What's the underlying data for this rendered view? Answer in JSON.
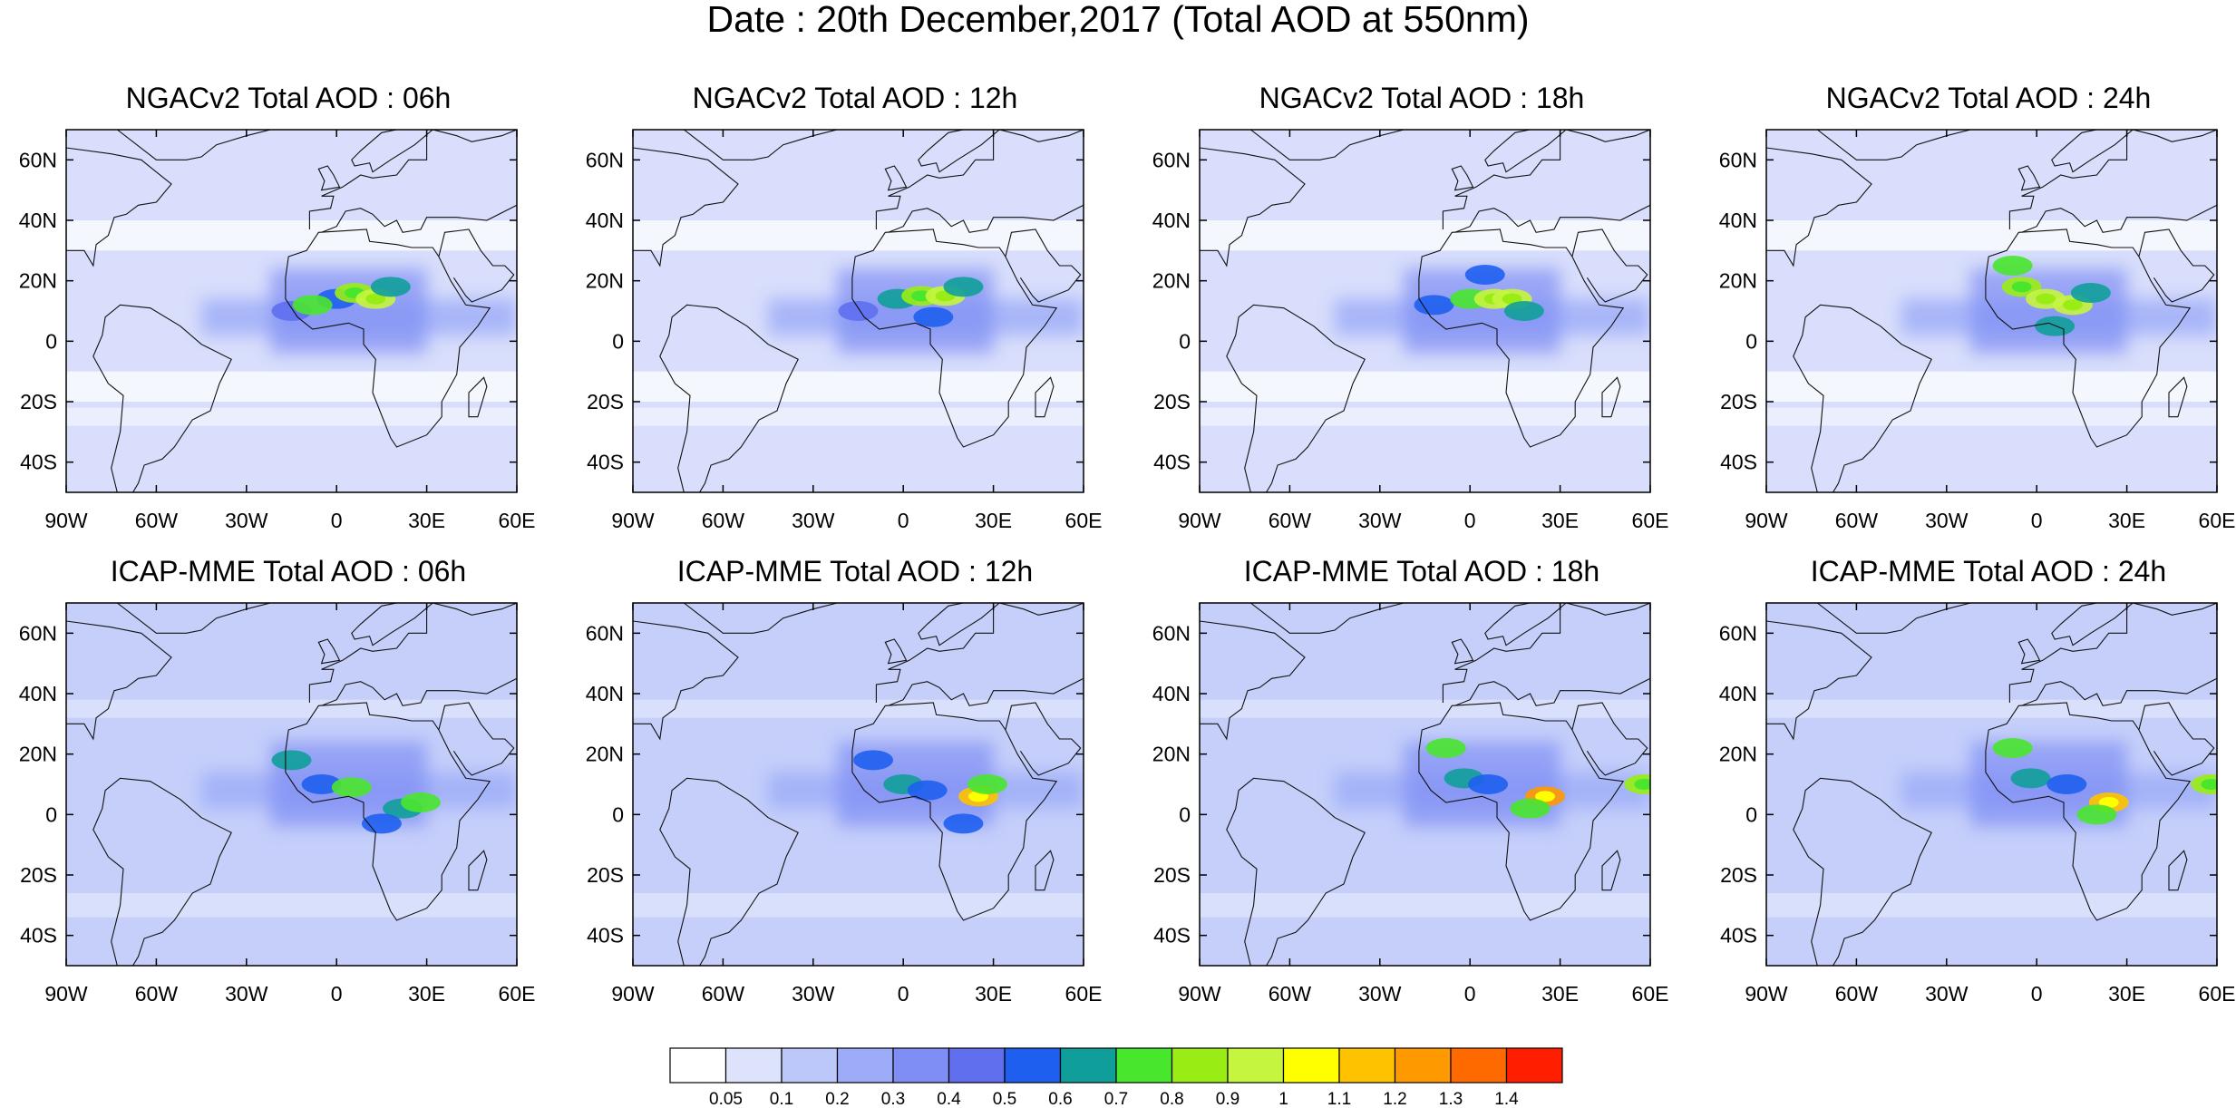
{
  "title": "Date : 20th December,2017 (Total AOD at 550nm)",
  "panels": [
    {
      "title": "NGACv2 Total AOD : 06h",
      "row": 0,
      "col": 0,
      "hotspots": [
        {
          "lon": -15,
          "lat": 10,
          "value": 0.4
        },
        {
          "lon": 0,
          "lat": 14,
          "value": 0.5
        },
        {
          "lon": 6,
          "lat": 16,
          "value": 0.8
        },
        {
          "lon": 13,
          "lat": 14,
          "value": 0.9
        },
        {
          "lon": -8,
          "lat": 12,
          "value": 0.7
        },
        {
          "lon": 18,
          "lat": 18,
          "value": 0.6
        }
      ]
    },
    {
      "title": "NGACv2 Total AOD : 12h",
      "row": 0,
      "col": 1,
      "hotspots": [
        {
          "lon": -15,
          "lat": 10,
          "value": 0.4
        },
        {
          "lon": -2,
          "lat": 14,
          "value": 0.6
        },
        {
          "lon": 6,
          "lat": 15,
          "value": 0.8
        },
        {
          "lon": 14,
          "lat": 15,
          "value": 0.9
        },
        {
          "lon": 20,
          "lat": 18,
          "value": 0.6
        },
        {
          "lon": 10,
          "lat": 8,
          "value": 0.5
        }
      ]
    },
    {
      "title": "NGACv2 Total AOD : 18h",
      "row": 0,
      "col": 2,
      "hotspots": [
        {
          "lon": -12,
          "lat": 12,
          "value": 0.5
        },
        {
          "lon": 0,
          "lat": 14,
          "value": 0.7
        },
        {
          "lon": 8,
          "lat": 14,
          "value": 0.9
        },
        {
          "lon": 14,
          "lat": 14,
          "value": 0.9
        },
        {
          "lon": 18,
          "lat": 10,
          "value": 0.6
        },
        {
          "lon": 5,
          "lat": 22,
          "value": 0.5
        }
      ]
    },
    {
      "title": "NGACv2 Total AOD : 24h",
      "row": 0,
      "col": 3,
      "hotspots": [
        {
          "lon": -8,
          "lat": 25,
          "value": 0.7
        },
        {
          "lon": -5,
          "lat": 18,
          "value": 0.8
        },
        {
          "lon": 3,
          "lat": 14,
          "value": 0.9
        },
        {
          "lon": 12,
          "lat": 12,
          "value": 0.9
        },
        {
          "lon": 6,
          "lat": 5,
          "value": 0.6
        },
        {
          "lon": 18,
          "lat": 16,
          "value": 0.6
        }
      ]
    },
    {
      "title": "ICAP-MME Total AOD : 06h",
      "row": 1,
      "col": 0,
      "hotspots": [
        {
          "lon": -15,
          "lat": 18,
          "value": 0.6
        },
        {
          "lon": -5,
          "lat": 10,
          "value": 0.5
        },
        {
          "lon": 5,
          "lat": 9,
          "value": 0.7
        },
        {
          "lon": 22,
          "lat": 2,
          "value": 0.6
        },
        {
          "lon": 28,
          "lat": 4,
          "value": 0.7
        },
        {
          "lon": 15,
          "lat": -3,
          "value": 0.5
        }
      ]
    },
    {
      "title": "ICAP-MME Total AOD : 12h",
      "row": 1,
      "col": 1,
      "hotspots": [
        {
          "lon": -10,
          "lat": 18,
          "value": 0.5
        },
        {
          "lon": 0,
          "lat": 10,
          "value": 0.6
        },
        {
          "lon": 8,
          "lat": 8,
          "value": 0.5
        },
        {
          "lon": 25,
          "lat": 6,
          "value": 1.1
        },
        {
          "lon": 20,
          "lat": -3,
          "value": 0.5
        },
        {
          "lon": 28,
          "lat": 10,
          "value": 0.7
        }
      ]
    },
    {
      "title": "ICAP-MME Total AOD : 18h",
      "row": 1,
      "col": 2,
      "hotspots": [
        {
          "lon": -8,
          "lat": 22,
          "value": 0.7
        },
        {
          "lon": -2,
          "lat": 12,
          "value": 0.6
        },
        {
          "lon": 6,
          "lat": 10,
          "value": 0.5
        },
        {
          "lon": 25,
          "lat": 6,
          "value": 1.2
        },
        {
          "lon": 20,
          "lat": 2,
          "value": 0.7
        },
        {
          "lon": 58,
          "lat": 10,
          "value": 0.8
        }
      ]
    },
    {
      "title": "ICAP-MME Total AOD : 24h",
      "row": 1,
      "col": 3,
      "hotspots": [
        {
          "lon": -8,
          "lat": 22,
          "value": 0.7
        },
        {
          "lon": -2,
          "lat": 12,
          "value": 0.6
        },
        {
          "lon": 10,
          "lat": 10,
          "value": 0.5
        },
        {
          "lon": 24,
          "lat": 4,
          "value": 1.1
        },
        {
          "lon": 20,
          "lat": 0,
          "value": 0.7
        },
        {
          "lon": 58,
          "lat": 10,
          "value": 0.8
        }
      ]
    }
  ],
  "axes": {
    "lon_ticks": [
      -90,
      -60,
      -30,
      0,
      30,
      60
    ],
    "lon_labels": [
      "90W",
      "60W",
      "30W",
      "0",
      "30E",
      "60E"
    ],
    "lat_ticks": [
      60,
      40,
      20,
      0,
      -20,
      -40
    ],
    "lat_labels": [
      "60N",
      "40N",
      "20N",
      "0",
      "20S",
      "40S"
    ],
    "lon_range": [
      -90,
      60
    ],
    "lat_range": [
      -50,
      70
    ]
  },
  "colorbar": {
    "levels": [
      "0.05",
      "0.1",
      "0.2",
      "0.3",
      "0.4",
      "0.5",
      "0.6",
      "0.7",
      "0.8",
      "0.9",
      "1",
      "1.1",
      "1.2",
      "1.3",
      "1.4"
    ],
    "colors": [
      "#ffffff",
      "#dde3fb",
      "#bcc8fa",
      "#9cacf8",
      "#7f8ef4",
      "#5f6fee",
      "#1f5ff0",
      "#0f9e9a",
      "#49e62e",
      "#99ed14",
      "#c5f53f",
      "#ffff00",
      "#ffc200",
      "#ff9900",
      "#ff6a00",
      "#ff1f00"
    ]
  }
}
